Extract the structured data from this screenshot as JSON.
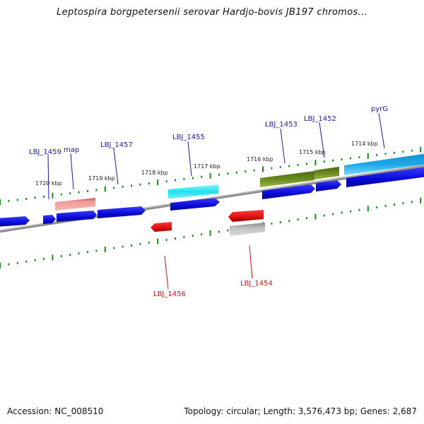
{
  "title": "Leptospira borgpetersenii serovar Hardjo-bovis JB197 chromos...",
  "footer": {
    "accession": "Accession: NC_008510",
    "stats": "Topology: circular; Length: 3,576,473 bp; Genes: 2,687"
  },
  "ticks": [
    {
      "label": "1720 kbp"
    },
    {
      "label": "1719 kbp"
    },
    {
      "label": "1718 kbp"
    },
    {
      "label": "1717 kbp"
    },
    {
      "label": "1716 kbp"
    },
    {
      "label": "1715 kbp"
    },
    {
      "label": "1714 kbp"
    }
  ],
  "gene_labels": [
    {
      "text": "LBJ_1459",
      "color": "#1a1aa0"
    },
    {
      "text": "map",
      "color": "#1a1aa0"
    },
    {
      "text": "LBJ_1457",
      "color": "#1a1aa0"
    },
    {
      "text": "LBJ_1455",
      "color": "#1a1aa0"
    },
    {
      "text": "LBJ_1453",
      "color": "#1a1aa0"
    },
    {
      "text": "LBJ_1452",
      "color": "#1a1aa0"
    },
    {
      "text": "pyrG",
      "color": "#1a1aa0"
    },
    {
      "text": "LBJ_1456",
      "color": "#cc1111"
    },
    {
      "text": "LBJ_1454",
      "color": "#cc1111"
    }
  ],
  "colors": {
    "cds": "#0a0ad8",
    "forward_feature_pink": "#e87c7c",
    "forward_feature_cyan": "#20e0ee",
    "forward_feature_olive": "#6a8a20",
    "forward_feature_sky": "#1aa8e8",
    "reverse_cds": "#e01010",
    "reverse_feature_gray": "#b8b8b8",
    "tick": "#1a8a1a",
    "backbone": "#8a8a8a"
  }
}
